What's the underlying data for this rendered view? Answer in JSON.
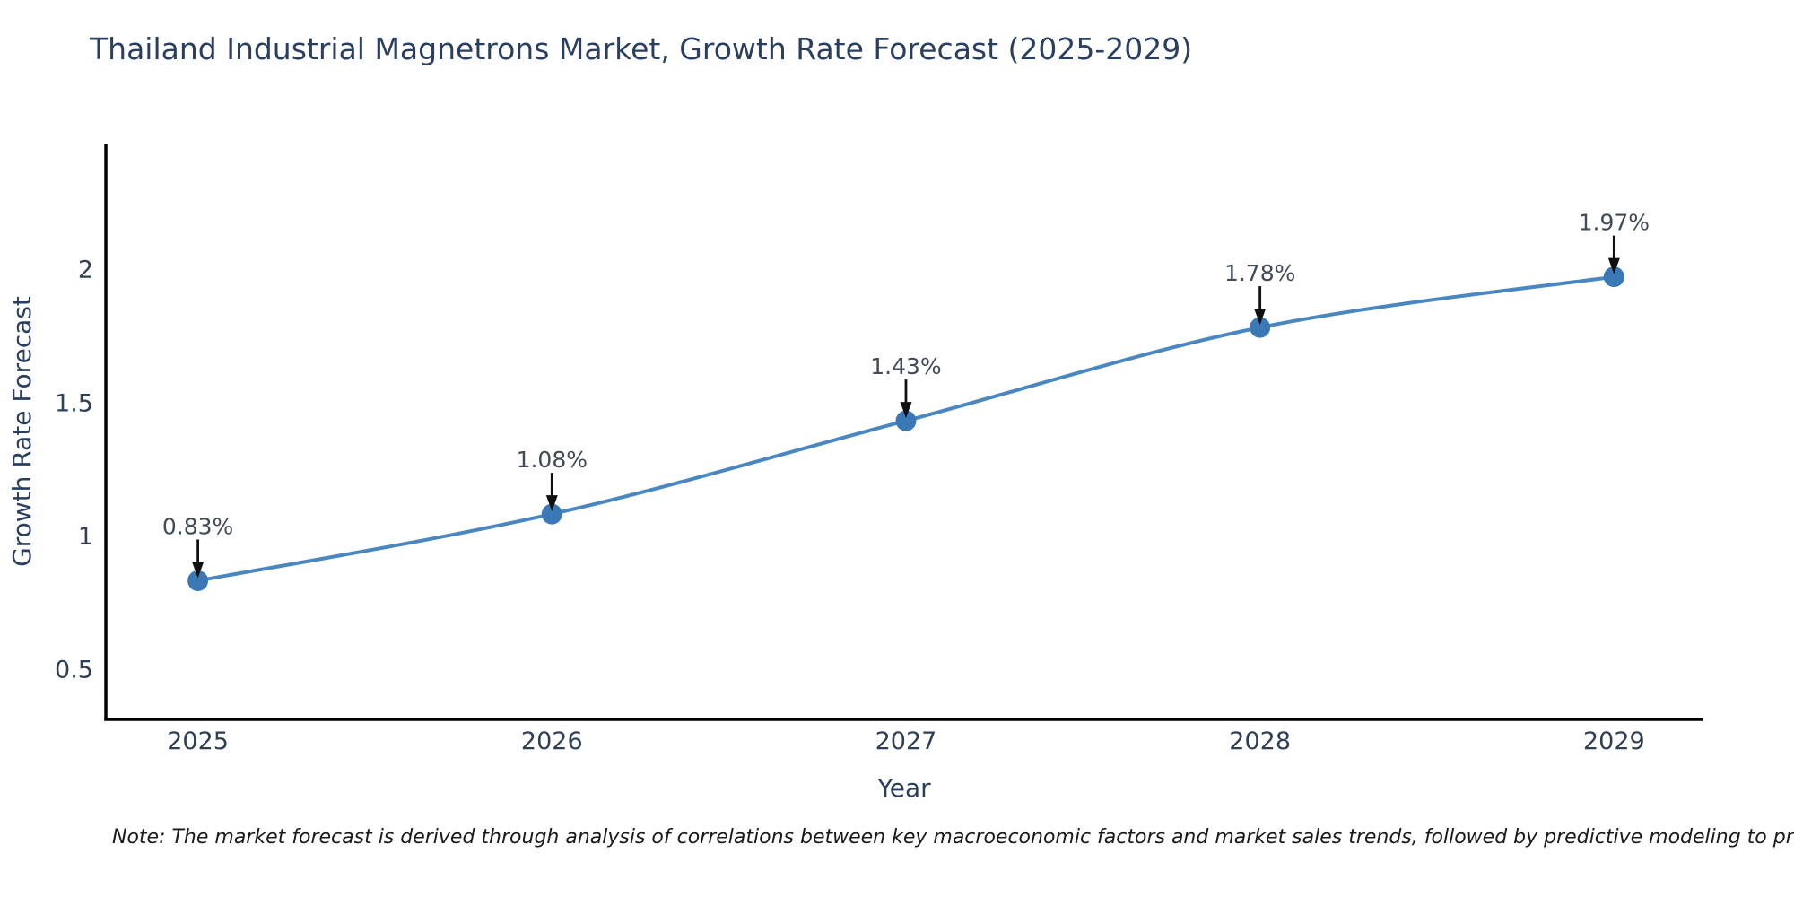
{
  "title": "Thailand Industrial Magnetrons Market, Growth Rate Forecast (2025-2029)",
  "note": "Note: The market forecast is derived through analysis of correlations between key macroeconomic factors and market sales trends, followed by predictive modeling to project future sales",
  "chart_data": {
    "type": "line",
    "title": "Thailand Industrial Magnetrons Market, Growth Rate Forecast (2025-2029)",
    "xlabel": "Year",
    "ylabel": "Growth Rate Forecast",
    "categories": [
      "2025",
      "2026",
      "2027",
      "2028",
      "2029"
    ],
    "values": [
      0.83,
      1.08,
      1.43,
      1.78,
      1.97
    ],
    "point_labels": [
      "0.83%",
      "1.08%",
      "1.43%",
      "1.78%",
      "1.97%"
    ],
    "yticks": [
      0.5,
      1,
      1.5,
      2
    ],
    "ytick_labels": [
      "0.5",
      "1",
      "1.5",
      "2"
    ],
    "xlim": [
      -0.26,
      4.25
    ],
    "ylim": [
      0.31,
      2.47
    ],
    "grid": false,
    "legend": "none",
    "line_shape": "spline",
    "marker": "circle",
    "annotation_style": "arrow-down-to-point",
    "colors": {
      "line": "#4a87c1",
      "marker": "#3a79b6",
      "axis": "#000000",
      "title_text": "#2a3f5f",
      "axis_title_text": "#2a3f5f",
      "tick_text": "#2f3f55",
      "annotation_text": "#404a58",
      "arrow": "#101010",
      "note_text": "#1a1a1a",
      "background": "#ffffff"
    }
  }
}
